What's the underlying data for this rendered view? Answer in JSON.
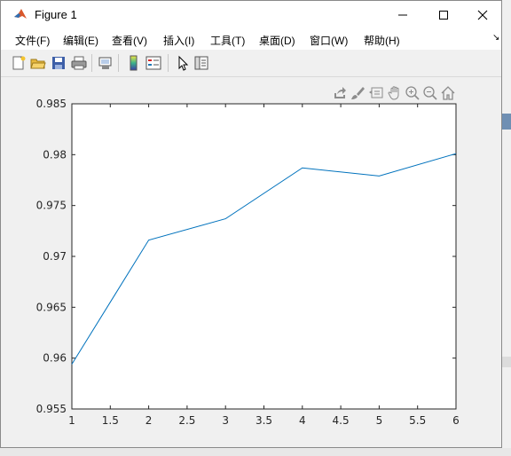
{
  "window": {
    "title": "Figure 1",
    "controls": {
      "minimize": "—",
      "maximize": "☐",
      "close": "✕"
    }
  },
  "menu": {
    "items": [
      {
        "label": "文件(F)",
        "name": "menu-file"
      },
      {
        "label": "编辑(E)",
        "name": "menu-edit"
      },
      {
        "label": "查看(V)",
        "name": "menu-view"
      },
      {
        "label": "插入(I)",
        "name": "menu-insert"
      },
      {
        "label": "工具(T)",
        "name": "menu-tools"
      },
      {
        "label": "桌面(D)",
        "name": "menu-desktop"
      },
      {
        "label": "窗口(W)",
        "name": "menu-window"
      },
      {
        "label": "帮助(H)",
        "name": "menu-help"
      }
    ],
    "overflow_icon": "arrow-icon"
  },
  "toolbar": {
    "icons": [
      "new-figure-icon",
      "open-icon",
      "save-icon",
      "print-icon",
      "link-plot-icon",
      "colorbar-icon",
      "legend-icon",
      "edit-plot-icon",
      "property-inspector-icon"
    ]
  },
  "axes_toolbar": {
    "icons": [
      "export-icon",
      "brush-icon",
      "data-tips-icon",
      "pan-icon",
      "zoom-in-icon",
      "zoom-out-icon",
      "home-icon"
    ]
  },
  "colors": {
    "line": "#0072bd",
    "axes_bg": "#ffffff",
    "figure_bg": "#f0f0f0"
  },
  "chart_data": {
    "type": "line",
    "x": [
      1,
      2,
      3,
      4,
      5,
      6
    ],
    "series": [
      {
        "values": [
          0.9594,
          0.9716,
          0.9737,
          0.9787,
          0.9779,
          0.9801
        ]
      }
    ],
    "xlim": [
      1,
      6
    ],
    "ylim": [
      0.955,
      0.985
    ],
    "xticks": [
      "1",
      "1.5",
      "2",
      "2.5",
      "3",
      "3.5",
      "4",
      "4.5",
      "5",
      "5.5",
      "6"
    ],
    "yticks": [
      "0.955",
      "0.96",
      "0.965",
      "0.97",
      "0.975",
      "0.98",
      "0.985"
    ],
    "title": "",
    "xlabel": "",
    "ylabel": "",
    "grid": false
  }
}
